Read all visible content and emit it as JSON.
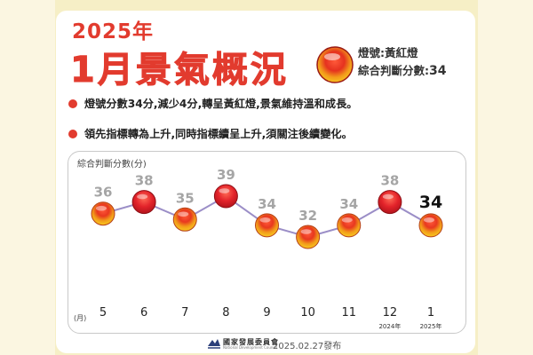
{
  "header": {
    "year": "2025年",
    "title": "1月景氣概況",
    "light_line": "燈號:黃紅燈",
    "score_label": "綜合判斷分數:",
    "score_value": "34"
  },
  "bullets": [
    "燈號分數34分,減少4分,轉呈黃紅燈,景氣維持溫和成長。",
    "領先指標轉為上升,同時指標續呈上升,須關注後續變化。"
  ],
  "colors": {
    "accent_red": "#e23b2e",
    "yellow_red_light": "#f0a21a",
    "red_light": "#d8232a"
  },
  "chart_data": {
    "type": "line",
    "ylabel": "綜合判斷分數(分)",
    "x_unit": "(月)",
    "categories": [
      "5",
      "6",
      "7",
      "8",
      "9",
      "10",
      "11",
      "12",
      "1"
    ],
    "year_labels": [
      "",
      "",
      "",
      "",
      "",
      "",
      "",
      "2024年",
      "2025年"
    ],
    "values": [
      36,
      38,
      35,
      39,
      34,
      32,
      34,
      38,
      34
    ],
    "signals": [
      "yellow-red",
      "red",
      "yellow-red",
      "red",
      "yellow-red",
      "yellow-red",
      "yellow-red",
      "red",
      "yellow-red"
    ],
    "highlight_index": 8,
    "grid": false
  },
  "footer": {
    "org_name": "國家發展委員會",
    "org_sub": "National Development Council",
    "date": "2025.02.27發布"
  }
}
